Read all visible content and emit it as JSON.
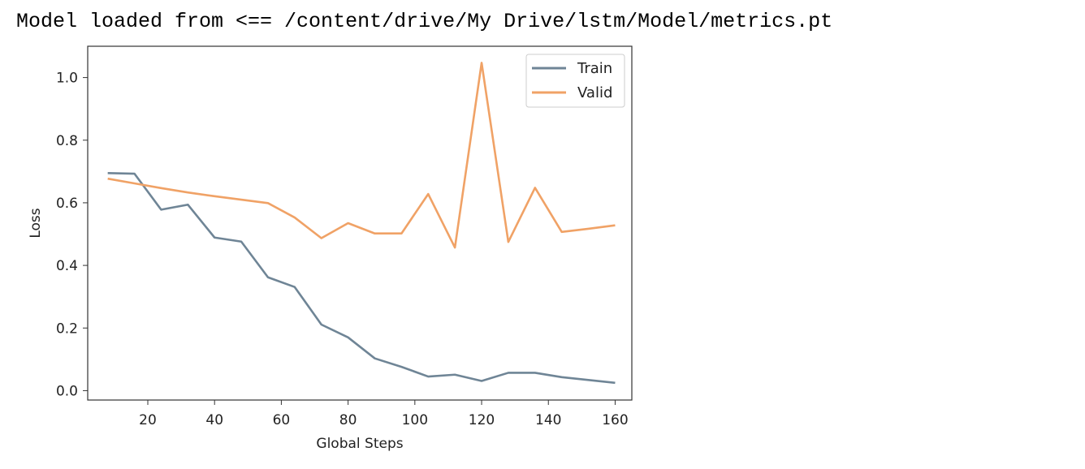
{
  "console": {
    "message": "Model loaded from <== /content/drive/My Drive/lstm/Model/metrics.pt"
  },
  "colors": {
    "train": "#6f8596",
    "valid": "#f0a266",
    "axis": "#333333",
    "text": "#222222"
  },
  "chart_data": {
    "type": "line",
    "xlabel": "Global Steps",
    "ylabel": "Loss",
    "xlim": [
      2,
      165
    ],
    "ylim": [
      -0.03,
      1.1
    ],
    "xticks": [
      20,
      40,
      60,
      80,
      100,
      120,
      140,
      160
    ],
    "yticks": [
      0.0,
      0.2,
      0.4,
      0.6,
      0.8,
      1.0
    ],
    "grid": false,
    "legend_position": "top-right",
    "x": [
      8,
      16,
      24,
      32,
      40,
      48,
      56,
      64,
      72,
      80,
      88,
      96,
      104,
      112,
      120,
      128,
      136,
      144,
      152,
      160
    ],
    "series": [
      {
        "name": "Train",
        "values": [
          0.695,
          0.693,
          0.578,
          0.594,
          0.489,
          0.476,
          0.362,
          0.331,
          0.211,
          0.17,
          0.103,
          0.076,
          0.045,
          0.051,
          0.031,
          0.057,
          0.057,
          0.043,
          0.034,
          0.025
        ]
      },
      {
        "name": "Valid",
        "values": [
          0.677,
          0.662,
          0.647,
          0.633,
          0.621,
          0.61,
          0.599,
          0.553,
          0.487,
          0.535,
          0.502,
          0.502,
          0.628,
          0.457,
          1.047,
          0.475,
          0.648,
          0.507,
          0.517,
          0.528
        ]
      }
    ]
  }
}
